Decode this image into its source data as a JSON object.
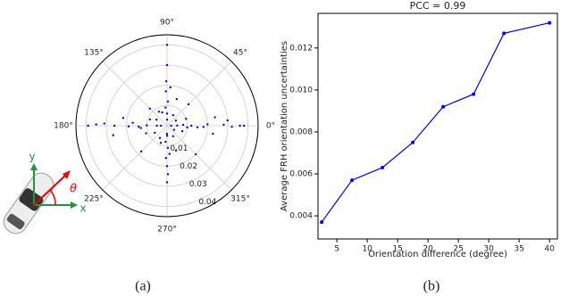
{
  "chart_data": [
    {
      "type": "polar-scatter",
      "series": [
        {
          "color": "#0000ff",
          "theta": [
            0,
            2,
            358,
            1,
            359,
            3,
            357,
            0,
            1,
            179,
            181,
            180,
            178,
            182,
            180,
            179,
            90,
            88,
            92,
            91,
            89,
            270,
            272,
            268,
            271,
            269,
            90,
            270,
            0,
            180,
            45,
            135,
            225,
            315,
            20,
            160,
            200,
            340,
            70,
            110,
            250,
            290,
            10,
            170,
            190,
            350,
            5,
            175,
            185,
            355,
            60,
            120,
            240,
            300,
            30,
            150,
            210,
            330,
            85,
            95,
            265,
            275,
            0,
            180,
            90,
            270
          ],
          "r": [
            0.012,
            0.02,
            0.018,
            0.028,
            0.032,
            0.008,
            0.015,
            0.036,
            0.005,
            0.01,
            0.019,
            0.026,
            0.031,
            0.014,
            0.005,
            0.035,
            0.006,
            0.012,
            0.017,
            0.022,
            0.003,
            0.005,
            0.011,
            0.016,
            0.024,
            0.004,
            0.03,
            0.02,
            0.002,
            0.003,
            0.015,
            0.012,
            0.018,
            0.02,
            0.01,
            0.009,
            0.011,
            0.008,
            0.014,
            0.007,
            0.009,
            0.013,
            0.024,
            0.022,
            0.027,
            0.023,
            0.03,
            0.017,
            0.013,
            0.01,
            0.006,
            0.008,
            0.007,
            0.006,
            0.005,
            0.006,
            0.007,
            0.004,
            0.019,
            0.009,
            0.008,
            0.014,
            0.038,
            0.039,
            0.04,
            0.028
          ]
        }
      ],
      "rlim": [
        0,
        0.045
      ],
      "rticks": [
        0.01,
        0.02,
        0.03,
        0.04
      ],
      "thetaticks": [
        {
          "value": 0,
          "label": "0°"
        },
        {
          "value": 45,
          "label": "45°"
        },
        {
          "value": 90,
          "label": "90°"
        },
        {
          "value": 135,
          "label": "135°"
        },
        {
          "value": 180,
          "label": "180°"
        },
        {
          "value": 225,
          "label": "225°"
        },
        {
          "value": 270,
          "label": "270°"
        },
        {
          "value": 315,
          "label": "315°"
        }
      ],
      "grid": true
    },
    {
      "type": "line",
      "title": "PCC = 0.99",
      "xlabel": "Orientation difference (degree)",
      "ylabel": "Average FRH orientation uncertainties",
      "x": [
        2.5,
        7.5,
        12.5,
        17.5,
        22.5,
        27.5,
        32.5,
        40
      ],
      "series": [
        {
          "color": "#0000ff",
          "values": [
            0.0037,
            0.0057,
            0.0063,
            0.0075,
            0.0092,
            0.0098,
            0.0127,
            0.0132
          ]
        }
      ],
      "xlim": [
        1.9,
        41.3
      ],
      "ylim": [
        0.0029,
        0.01365
      ],
      "xticks": [
        5,
        10,
        15,
        20,
        25,
        30,
        35,
        40
      ],
      "yticks": [
        0.004,
        0.006,
        0.008,
        {
          "value": 0.01,
          "label": "0.010"
        },
        0.012
      ]
    }
  ],
  "captions": [
    "(a)",
    "(b)"
  ],
  "icon_labels": {
    "x": "x",
    "y": "y",
    "theta": "θ"
  }
}
